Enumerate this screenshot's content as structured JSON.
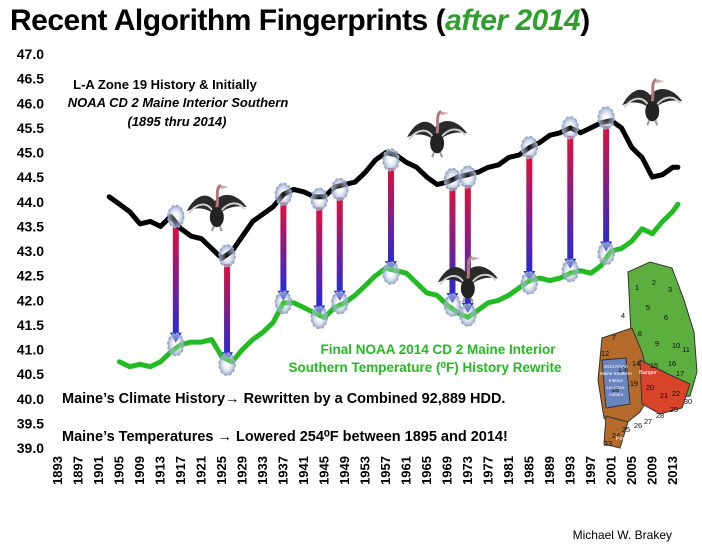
{
  "page": {
    "title_main": "Recent Algorithm Fingerprints (",
    "title_accent": "after 2014",
    "title_end": ")",
    "credit": "Michael W. Brakey"
  },
  "colors": {
    "accent": "#2e9e2e",
    "history_line": "#000000",
    "noaa_line": "#22bb22",
    "arrow_top": "#e0103a",
    "arrow_bottom": "#2a2ad0",
    "map_green": "#5cae3e",
    "map_brown": "#b46a2a",
    "map_red": "#d8442a",
    "map_blue": "#6a84c0"
  },
  "annotations": {
    "history_label": [
      "L-A Zone 19 History & Initially",
      "NOAA CD 2 Maine Interior Southern",
      "(1895 thru 2014)"
    ],
    "noaa_label": [
      "Final NOAA 2014 CD 2 Maine Interior",
      "Southern Temperature (⁰F) History Rewrite"
    ],
    "statement_1": "Maine’s Climate History→ Rewritten by a Combined 92,889 HDD.",
    "statement_2": "Maine’s Temperatures → Lowered 254⁰F between 1895 and 2014!"
  },
  "map": {
    "labels": [
      "1",
      "2",
      "3",
      "4",
      "5",
      "6",
      "7",
      "8",
      "9",
      "10",
      "11",
      "12",
      "13",
      "14",
      "15",
      "16",
      "17",
      "18",
      "19",
      "20",
      "21",
      "22",
      "23",
      "24",
      "25",
      "26",
      "27",
      "28",
      "29",
      "30",
      "Bangor",
      "Portland"
    ],
    "inset_text": [
      "2014 NOAA",
      "Maine Southern",
      "Interior",
      "Lewiston-",
      "Auburn"
    ]
  },
  "chart_data": {
    "type": "line",
    "title": "Recent Algorithm Fingerprints (after 2014)",
    "xlabel": "",
    "ylabel": "",
    "ylim": [
      39.0,
      47.0
    ],
    "xlim": [
      1893,
      2015
    ],
    "yticks": [
      "39.0",
      "39.5",
      "40.0",
      "40.5",
      "41.0",
      "41.5",
      "42.0",
      "42.5",
      "43.0",
      "43.5",
      "44.0",
      "44.5",
      "45.0",
      "45.5",
      "46.0",
      "46.5",
      "47.0"
    ],
    "xticks": [
      "1893",
      "1897",
      "1901",
      "1905",
      "1909",
      "1913",
      "1917",
      "1921",
      "1925",
      "1929",
      "1933",
      "1937",
      "1941",
      "1945",
      "1949",
      "1953",
      "1957",
      "1961",
      "1965",
      "1969",
      "1973",
      "1977",
      "1981",
      "1985",
      "1989",
      "1993",
      "1997",
      "2001",
      "2005",
      "2009",
      "2013"
    ],
    "grid": false,
    "series": [
      {
        "name": "L-A Zone 19 History & Initially NOAA CD 2 Maine Interior Southern (1895 thru 2014)",
        "x": [
          1903,
          1905,
          1907,
          1909,
          1911,
          1913,
          1915,
          1917,
          1919,
          1921,
          1923,
          1925,
          1927,
          1929,
          1931,
          1933,
          1935,
          1937,
          1939,
          1941,
          1943,
          1945,
          1947,
          1949,
          1951,
          1953,
          1955,
          1957,
          1959,
          1961,
          1963,
          1965,
          1967,
          1969,
          1971,
          1973,
          1975,
          1977,
          1979,
          1981,
          1983,
          1985,
          1987,
          1989,
          1991,
          1993,
          1995,
          1997,
          1999,
          2001,
          2003,
          2005,
          2007,
          2009,
          2011,
          2013,
          2014
        ],
        "values": [
          44.1,
          43.95,
          43.8,
          43.55,
          43.6,
          43.5,
          43.7,
          43.45,
          43.3,
          43.25,
          43.05,
          42.85,
          43.0,
          43.3,
          43.6,
          43.75,
          43.9,
          44.15,
          44.25,
          44.2,
          44.1,
          44.1,
          44.3,
          44.35,
          44.4,
          44.6,
          44.85,
          45.0,
          44.95,
          44.8,
          44.7,
          44.5,
          44.35,
          44.4,
          44.5,
          44.55,
          44.6,
          44.7,
          44.75,
          44.9,
          44.95,
          45.1,
          45.2,
          45.35,
          45.4,
          45.5,
          45.4,
          45.5,
          45.6,
          45.65,
          45.5,
          45.1,
          44.9,
          44.5,
          44.55,
          44.7,
          44.7
        ]
      },
      {
        "name": "Final NOAA 2014 CD 2 Maine Interior Southern Temperature (⁰F) History Rewrite",
        "x": [
          1905,
          1907,
          1909,
          1911,
          1913,
          1915,
          1917,
          1919,
          1921,
          1923,
          1925,
          1927,
          1929,
          1931,
          1933,
          1935,
          1937,
          1939,
          1941,
          1943,
          1945,
          1947,
          1949,
          1951,
          1953,
          1955,
          1957,
          1959,
          1961,
          1963,
          1965,
          1967,
          1969,
          1971,
          1973,
          1975,
          1977,
          1979,
          1981,
          1983,
          1985,
          1987,
          1989,
          1991,
          1993,
          1995,
          1997,
          1999,
          2001,
          2003,
          2005,
          2007,
          2009,
          2011,
          2013,
          2014
        ],
        "values": [
          40.75,
          40.65,
          40.7,
          40.65,
          40.75,
          40.95,
          41.1,
          41.15,
          41.15,
          41.2,
          40.85,
          40.75,
          41.0,
          41.2,
          41.35,
          41.55,
          41.95,
          41.95,
          41.85,
          41.75,
          41.65,
          41.85,
          41.95,
          42.1,
          42.3,
          42.5,
          42.65,
          42.6,
          42.55,
          42.35,
          42.15,
          42.1,
          41.9,
          41.75,
          41.65,
          41.8,
          41.95,
          42.0,
          42.1,
          42.25,
          42.4,
          42.45,
          42.4,
          42.45,
          42.55,
          42.6,
          42.55,
          42.7,
          43.0,
          43.05,
          43.2,
          43.45,
          43.35,
          43.6,
          43.8,
          43.95
        ]
      }
    ],
    "arrows": [
      {
        "year": 1916,
        "from": 43.7,
        "to": 41.1
      },
      {
        "year": 1926,
        "from": 42.9,
        "to": 40.7
      },
      {
        "year": 1937,
        "from": 44.15,
        "to": 41.95
      },
      {
        "year": 1944,
        "from": 44.05,
        "to": 41.65
      },
      {
        "year": 1948,
        "from": 44.25,
        "to": 41.95
      },
      {
        "year": 1958,
        "from": 44.85,
        "to": 42.55
      },
      {
        "year": 1970,
        "from": 44.45,
        "to": 41.9
      },
      {
        "year": 1973,
        "from": 44.5,
        "to": 41.7
      },
      {
        "year": 1985,
        "from": 45.1,
        "to": 42.35
      },
      {
        "year": 1993,
        "from": 45.5,
        "to": 42.6
      },
      {
        "year": 2000,
        "from": 45.7,
        "to": 42.95
      }
    ],
    "vultures": [
      {
        "year": 1924,
        "value": 43.85
      },
      {
        "year": 1967,
        "value": 45.35
      },
      {
        "year": 1973,
        "value": 42.4
      },
      {
        "year": 2009,
        "value": 46.0
      }
    ]
  }
}
